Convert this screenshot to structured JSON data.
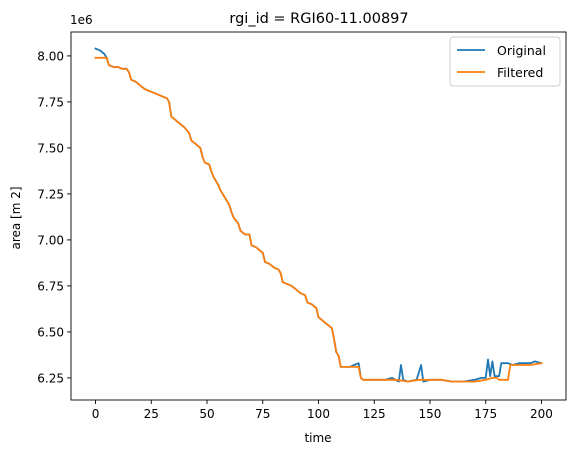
{
  "chart_data": {
    "type": "line",
    "title": "rgi_id = RGI60-11.00897",
    "xlabel": "time",
    "ylabel": "area [m 2]",
    "offset_label": "1e6",
    "xlim": [
      -11,
      211
    ],
    "ylim": [
      6.13,
      8.13
    ],
    "xticks": [
      0,
      25,
      50,
      75,
      100,
      125,
      150,
      175,
      200
    ],
    "yticks": [
      6.25,
      6.5,
      6.75,
      7.0,
      7.25,
      7.5,
      7.75,
      8.0
    ],
    "ytick_labels": [
      "6.25",
      "6.50",
      "6.75",
      "7.00",
      "7.25",
      "7.50",
      "7.75",
      "8.00"
    ],
    "grid": false,
    "legend_position": "top-right",
    "series": [
      {
        "name": "Original",
        "color": "#1f77b4",
        "points": [
          [
            0,
            8.04
          ],
          [
            2,
            8.03
          ],
          [
            4,
            8.01
          ],
          [
            5,
            7.99
          ],
          [
            6,
            7.95
          ],
          [
            8,
            7.94
          ],
          [
            10,
            7.94
          ],
          [
            12,
            7.93
          ],
          [
            14,
            7.93
          ],
          [
            15,
            7.91
          ],
          [
            16,
            7.87
          ],
          [
            18,
            7.86
          ],
          [
            20,
            7.84
          ],
          [
            22,
            7.82
          ],
          [
            24,
            7.81
          ],
          [
            26,
            7.8
          ],
          [
            28,
            7.79
          ],
          [
            30,
            7.78
          ],
          [
            32,
            7.77
          ],
          [
            33,
            7.75
          ],
          [
            34,
            7.67
          ],
          [
            36,
            7.65
          ],
          [
            38,
            7.63
          ],
          [
            40,
            7.61
          ],
          [
            42,
            7.58
          ],
          [
            43,
            7.54
          ],
          [
            45,
            7.52
          ],
          [
            47,
            7.5
          ],
          [
            48,
            7.45
          ],
          [
            49,
            7.42
          ],
          [
            51,
            7.41
          ],
          [
            52,
            7.37
          ],
          [
            53,
            7.34
          ],
          [
            55,
            7.3
          ],
          [
            56,
            7.27
          ],
          [
            58,
            7.23
          ],
          [
            60,
            7.19
          ],
          [
            61,
            7.15
          ],
          [
            62,
            7.12
          ],
          [
            64,
            7.09
          ],
          [
            65,
            7.05
          ],
          [
            67,
            7.03
          ],
          [
            69,
            7.03
          ],
          [
            70,
            6.97
          ],
          [
            72,
            6.96
          ],
          [
            74,
            6.94
          ],
          [
            75,
            6.93
          ],
          [
            76,
            6.88
          ],
          [
            78,
            6.87
          ],
          [
            80,
            6.85
          ],
          [
            82,
            6.84
          ],
          [
            83,
            6.82
          ],
          [
            84,
            6.77
          ],
          [
            86,
            6.76
          ],
          [
            88,
            6.75
          ],
          [
            90,
            6.73
          ],
          [
            92,
            6.71
          ],
          [
            94,
            6.7
          ],
          [
            95,
            6.66
          ],
          [
            97,
            6.65
          ],
          [
            99,
            6.63
          ],
          [
            100,
            6.58
          ],
          [
            102,
            6.56
          ],
          [
            104,
            6.54
          ],
          [
            106,
            6.52
          ],
          [
            107,
            6.46
          ],
          [
            108,
            6.39
          ],
          [
            109,
            6.37
          ],
          [
            110,
            6.31
          ],
          [
            112,
            6.31
          ],
          [
            114,
            6.31
          ],
          [
            116,
            6.32
          ],
          [
            118,
            6.33
          ],
          [
            119,
            6.25
          ],
          [
            120,
            6.24
          ],
          [
            125,
            6.24
          ],
          [
            130,
            6.24
          ],
          [
            133,
            6.25
          ],
          [
            136,
            6.23
          ],
          [
            137,
            6.32
          ],
          [
            138,
            6.24
          ],
          [
            140,
            6.23
          ],
          [
            144,
            6.24
          ],
          [
            146,
            6.32
          ],
          [
            147,
            6.23
          ],
          [
            150,
            6.24
          ],
          [
            155,
            6.24
          ],
          [
            160,
            6.23
          ],
          [
            165,
            6.23
          ],
          [
            170,
            6.24
          ],
          [
            173,
            6.25
          ],
          [
            175,
            6.25
          ],
          [
            176,
            6.35
          ],
          [
            177,
            6.26
          ],
          [
            178,
            6.34
          ],
          [
            179,
            6.26
          ],
          [
            181,
            6.26
          ],
          [
            182,
            6.33
          ],
          [
            185,
            6.33
          ],
          [
            187,
            6.32
          ],
          [
            190,
            6.33
          ],
          [
            195,
            6.33
          ],
          [
            197,
            6.34
          ],
          [
            200,
            6.33
          ]
        ]
      },
      {
        "name": "Filtered",
        "color": "#ff7f0e",
        "points": [
          [
            0,
            7.99
          ],
          [
            4,
            7.99
          ],
          [
            5,
            7.99
          ],
          [
            6,
            7.95
          ],
          [
            8,
            7.94
          ],
          [
            10,
            7.94
          ],
          [
            12,
            7.93
          ],
          [
            14,
            7.93
          ],
          [
            15,
            7.91
          ],
          [
            16,
            7.87
          ],
          [
            18,
            7.86
          ],
          [
            20,
            7.84
          ],
          [
            22,
            7.82
          ],
          [
            24,
            7.81
          ],
          [
            26,
            7.8
          ],
          [
            28,
            7.79
          ],
          [
            30,
            7.78
          ],
          [
            32,
            7.77
          ],
          [
            33,
            7.75
          ],
          [
            34,
            7.67
          ],
          [
            36,
            7.65
          ],
          [
            38,
            7.63
          ],
          [
            40,
            7.61
          ],
          [
            42,
            7.58
          ],
          [
            43,
            7.54
          ],
          [
            45,
            7.52
          ],
          [
            47,
            7.5
          ],
          [
            48,
            7.45
          ],
          [
            49,
            7.42
          ],
          [
            51,
            7.41
          ],
          [
            52,
            7.37
          ],
          [
            53,
            7.34
          ],
          [
            55,
            7.3
          ],
          [
            56,
            7.27
          ],
          [
            58,
            7.23
          ],
          [
            60,
            7.19
          ],
          [
            61,
            7.15
          ],
          [
            62,
            7.12
          ],
          [
            64,
            7.09
          ],
          [
            65,
            7.05
          ],
          [
            67,
            7.03
          ],
          [
            69,
            7.03
          ],
          [
            70,
            6.97
          ],
          [
            72,
            6.96
          ],
          [
            74,
            6.94
          ],
          [
            75,
            6.93
          ],
          [
            76,
            6.88
          ],
          [
            78,
            6.87
          ],
          [
            80,
            6.85
          ],
          [
            82,
            6.84
          ],
          [
            83,
            6.82
          ],
          [
            84,
            6.77
          ],
          [
            86,
            6.76
          ],
          [
            88,
            6.75
          ],
          [
            90,
            6.73
          ],
          [
            92,
            6.71
          ],
          [
            94,
            6.7
          ],
          [
            95,
            6.66
          ],
          [
            97,
            6.65
          ],
          [
            99,
            6.63
          ],
          [
            100,
            6.58
          ],
          [
            102,
            6.56
          ],
          [
            104,
            6.54
          ],
          [
            106,
            6.52
          ],
          [
            107,
            6.46
          ],
          [
            108,
            6.39
          ],
          [
            109,
            6.37
          ],
          [
            110,
            6.31
          ],
          [
            112,
            6.31
          ],
          [
            114,
            6.31
          ],
          [
            116,
            6.31
          ],
          [
            118,
            6.31
          ],
          [
            119,
            6.25
          ],
          [
            120,
            6.24
          ],
          [
            125,
            6.24
          ],
          [
            130,
            6.24
          ],
          [
            135,
            6.24
          ],
          [
            140,
            6.23
          ],
          [
            145,
            6.24
          ],
          [
            150,
            6.24
          ],
          [
            155,
            6.24
          ],
          [
            160,
            6.23
          ],
          [
            165,
            6.23
          ],
          [
            170,
            6.23
          ],
          [
            175,
            6.24
          ],
          [
            178,
            6.25
          ],
          [
            180,
            6.25
          ],
          [
            181,
            6.24
          ],
          [
            185,
            6.24
          ],
          [
            186,
            6.32
          ],
          [
            190,
            6.32
          ],
          [
            195,
            6.32
          ],
          [
            200,
            6.33
          ]
        ]
      }
    ]
  }
}
